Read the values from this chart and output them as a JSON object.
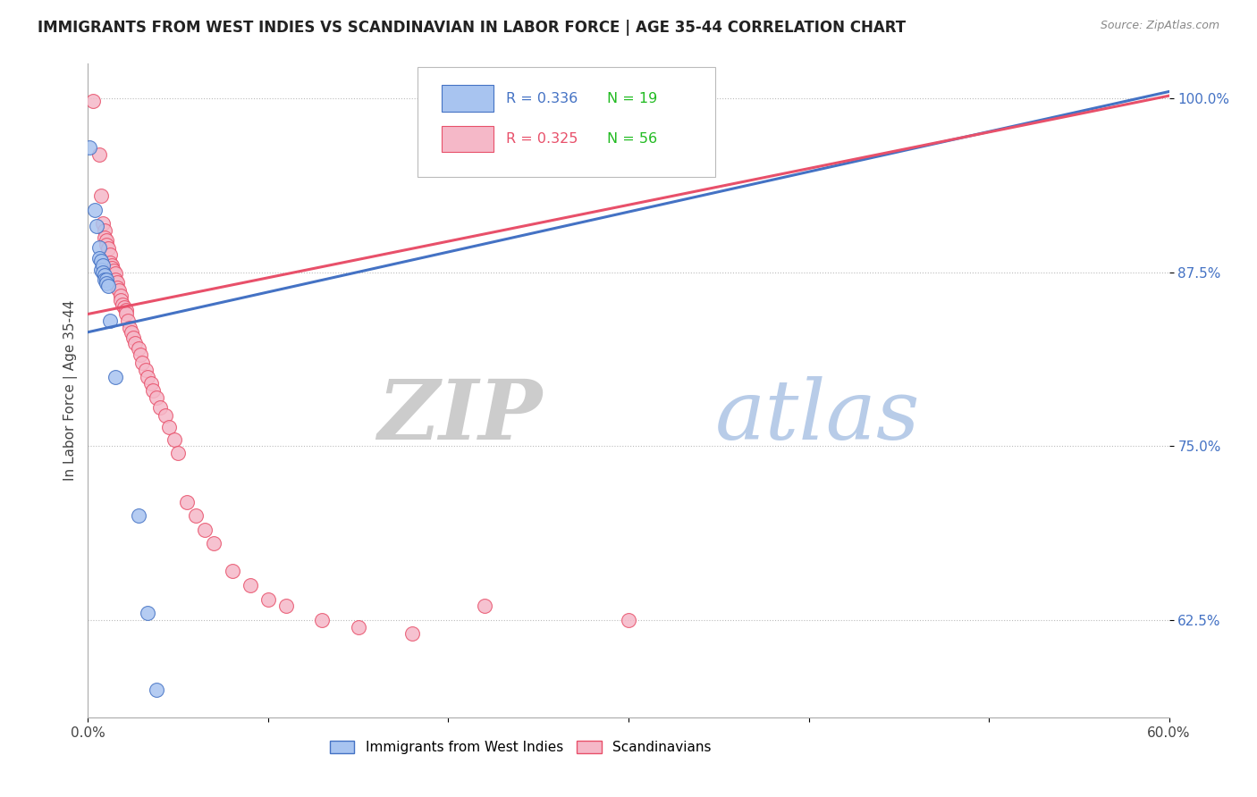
{
  "title": "IMMIGRANTS FROM WEST INDIES VS SCANDINAVIAN IN LABOR FORCE | AGE 35-44 CORRELATION CHART",
  "source": "Source: ZipAtlas.com",
  "ylabel": "In Labor Force | Age 35-44",
  "xmin": 0.0,
  "xmax": 0.6,
  "ymin": 0.555,
  "ymax": 1.025,
  "xticks": [
    0.0,
    0.1,
    0.2,
    0.3,
    0.4,
    0.5,
    0.6
  ],
  "xticklabels": [
    "0.0%",
    "",
    "",
    "",
    "",
    "",
    "60.0%"
  ],
  "ytick_positions": [
    0.625,
    0.75,
    0.875,
    1.0
  ],
  "ytick_labels": [
    "62.5%",
    "75.0%",
    "87.5%",
    "100.0%"
  ],
  "blue_R": "0.336",
  "blue_N": "19",
  "pink_R": "0.325",
  "pink_N": "56",
  "blue_color": "#a8c4f0",
  "pink_color": "#f5b8c8",
  "blue_line_color": "#4472c4",
  "pink_line_color": "#e8506a",
  "watermark_zip": "ZIP",
  "watermark_atlas": "atlas",
  "blue_points": [
    [
      0.001,
      0.965
    ],
    [
      0.004,
      0.92
    ],
    [
      0.005,
      0.908
    ],
    [
      0.006,
      0.893
    ],
    [
      0.006,
      0.885
    ],
    [
      0.007,
      0.883
    ],
    [
      0.007,
      0.877
    ],
    [
      0.008,
      0.88
    ],
    [
      0.008,
      0.875
    ],
    [
      0.009,
      0.873
    ],
    [
      0.009,
      0.87
    ],
    [
      0.01,
      0.87
    ],
    [
      0.01,
      0.867
    ],
    [
      0.011,
      0.865
    ],
    [
      0.012,
      0.84
    ],
    [
      0.015,
      0.8
    ],
    [
      0.028,
      0.7
    ],
    [
      0.033,
      0.63
    ],
    [
      0.038,
      0.575
    ]
  ],
  "pink_points": [
    [
      0.003,
      0.998
    ],
    [
      0.006,
      0.96
    ],
    [
      0.007,
      0.93
    ],
    [
      0.008,
      0.91
    ],
    [
      0.009,
      0.905
    ],
    [
      0.009,
      0.9
    ],
    [
      0.01,
      0.898
    ],
    [
      0.01,
      0.895
    ],
    [
      0.011,
      0.892
    ],
    [
      0.012,
      0.888
    ],
    [
      0.012,
      0.882
    ],
    [
      0.013,
      0.88
    ],
    [
      0.013,
      0.878
    ],
    [
      0.014,
      0.876
    ],
    [
      0.015,
      0.874
    ],
    [
      0.015,
      0.87
    ],
    [
      0.016,
      0.868
    ],
    [
      0.016,
      0.864
    ],
    [
      0.017,
      0.862
    ],
    [
      0.018,
      0.858
    ],
    [
      0.018,
      0.855
    ],
    [
      0.019,
      0.852
    ],
    [
      0.02,
      0.85
    ],
    [
      0.021,
      0.848
    ],
    [
      0.021,
      0.845
    ],
    [
      0.022,
      0.84
    ],
    [
      0.023,
      0.835
    ],
    [
      0.024,
      0.832
    ],
    [
      0.025,
      0.828
    ],
    [
      0.026,
      0.824
    ],
    [
      0.028,
      0.82
    ],
    [
      0.029,
      0.816
    ],
    [
      0.03,
      0.81
    ],
    [
      0.032,
      0.805
    ],
    [
      0.033,
      0.8
    ],
    [
      0.035,
      0.795
    ],
    [
      0.036,
      0.79
    ],
    [
      0.038,
      0.785
    ],
    [
      0.04,
      0.778
    ],
    [
      0.043,
      0.772
    ],
    [
      0.045,
      0.764
    ],
    [
      0.048,
      0.755
    ],
    [
      0.05,
      0.745
    ],
    [
      0.055,
      0.71
    ],
    [
      0.06,
      0.7
    ],
    [
      0.065,
      0.69
    ],
    [
      0.07,
      0.68
    ],
    [
      0.08,
      0.66
    ],
    [
      0.09,
      0.65
    ],
    [
      0.1,
      0.64
    ],
    [
      0.11,
      0.635
    ],
    [
      0.13,
      0.625
    ],
    [
      0.15,
      0.62
    ],
    [
      0.18,
      0.615
    ],
    [
      0.22,
      0.635
    ],
    [
      0.3,
      0.625
    ]
  ],
  "blue_line_x": [
    0.0,
    0.6
  ],
  "blue_line_y": [
    0.832,
    1.005
  ],
  "pink_line_x": [
    0.0,
    0.6
  ],
  "pink_line_y": [
    0.845,
    1.002
  ]
}
